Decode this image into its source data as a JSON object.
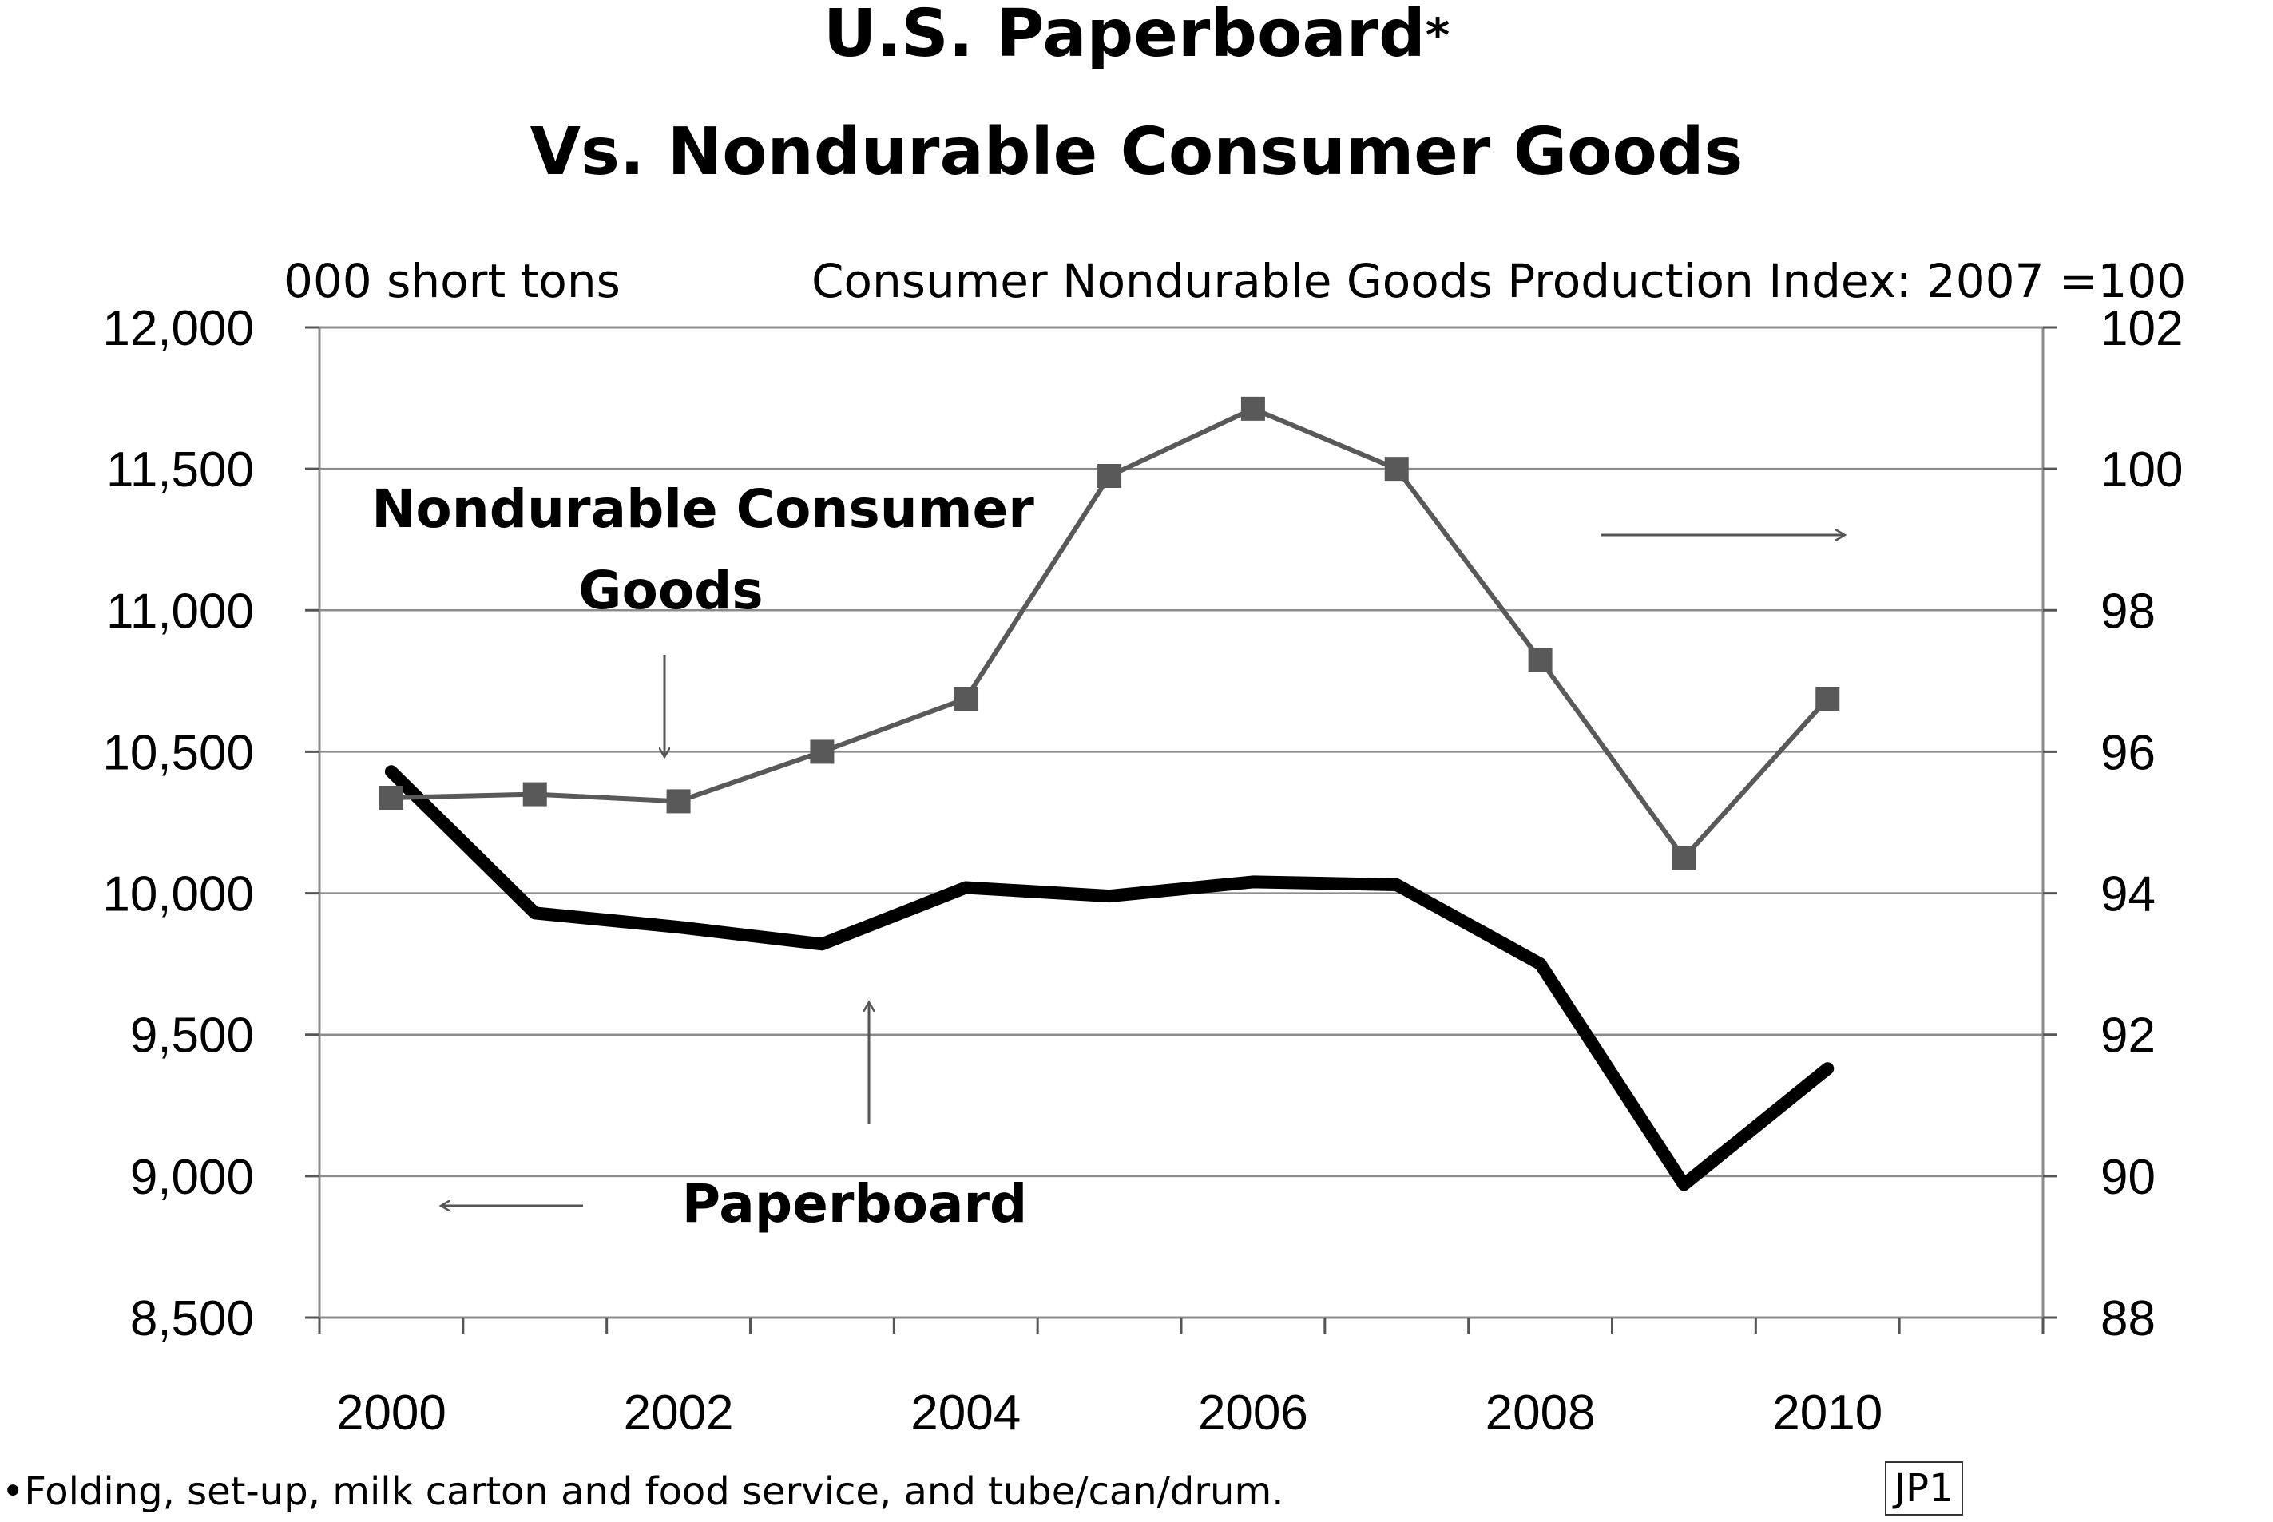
{
  "chart_data": {
    "type": "line",
    "title": "U.S. Paperboard",
    "title_asterisk": "*",
    "subtitle": "Vs. Nondurable Consumer Goods",
    "left_axis_unit": "000 short tons",
    "right_axis_unit": "Consumer Nondurable Goods Production Index: 2007 =100",
    "x": [
      2000,
      2001,
      2002,
      2003,
      2004,
      2005,
      2006,
      2007,
      2008,
      2009,
      2010
    ],
    "x_tick_labels": [
      "2000",
      "2002",
      "2004",
      "2006",
      "2008",
      "2010"
    ],
    "xlim": [
      1999.5,
      2011.5
    ],
    "ylim_left": [
      8500,
      12000
    ],
    "ylim_right": [
      88,
      102
    ],
    "y_left_tick_labels": [
      "12,000",
      "11,500",
      "11,000",
      "10,500",
      "10,000",
      "9,500",
      "9,000",
      "8,500"
    ],
    "y_right_tick_labels": [
      "102",
      "100",
      "98",
      "96",
      "94",
      "92",
      "90",
      "88"
    ],
    "grid": true,
    "series": [
      {
        "name": "Paperboard",
        "axis": "left",
        "color": "#000000",
        "values": [
          10430,
          9930,
          9880,
          9820,
          10020,
          9990,
          10040,
          10030,
          9750,
          8970,
          9380
        ]
      },
      {
        "name": "Nondurable Consumer Goods",
        "axis": "right",
        "color": "#595959",
        "values": [
          95.35,
          95.4,
          95.3,
          96.0,
          96.75,
          99.9,
          100.85,
          100.0,
          97.3,
          94.5,
          96.75
        ]
      }
    ],
    "annotations": {
      "nondurable_label_line1": "Nondurable Consumer",
      "nondurable_label_line2": "Goods",
      "paperboard_label": "Paperboard"
    }
  },
  "footnote": "•Folding, set-up, milk carton and food service, and tube/can/drum.",
  "code": "JP1"
}
